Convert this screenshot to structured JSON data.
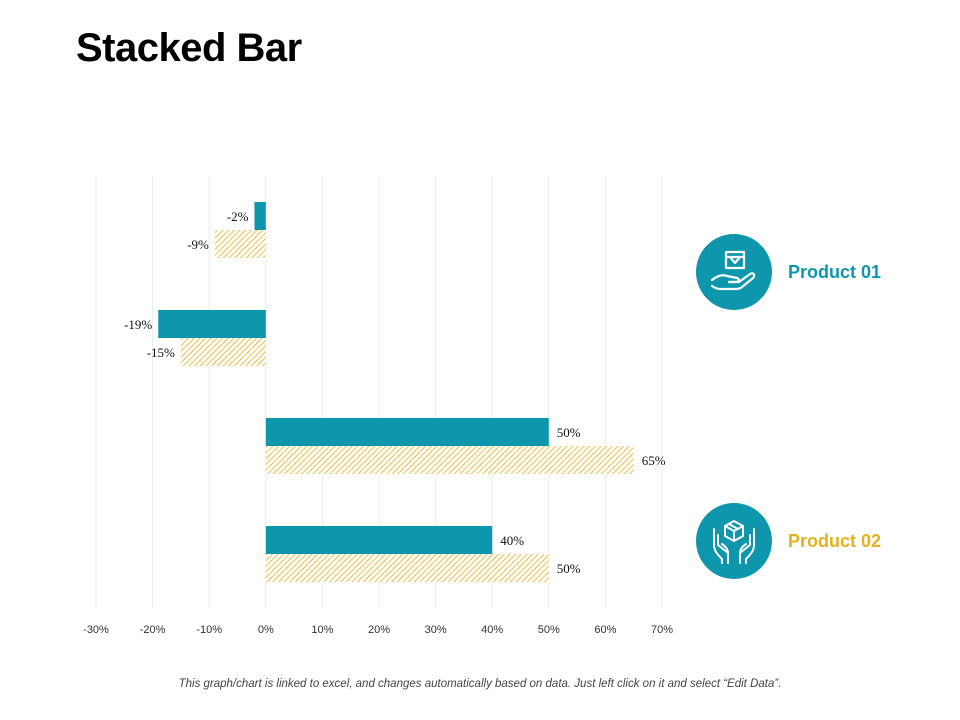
{
  "title": "Stacked Bar",
  "footnote": "This graph/chart is linked to excel, and changes automatically based on data. Just left click on it and select “Edit Data”.",
  "colors": {
    "product1": "#0e97ac",
    "product2": "#e3b21e",
    "legend_circle": "#0e97ac",
    "grid": "#ececec"
  },
  "legend": [
    {
      "label": "Product 01",
      "icon": "hand-box-icon",
      "color": "#0e97ac"
    },
    {
      "label": "Product 02",
      "icon": "hands-cube-icon",
      "color": "#e3b21e"
    }
  ],
  "chart_data": {
    "type": "bar",
    "orientation": "horizontal",
    "series": [
      {
        "values": [
          -2,
          -19,
          50,
          40
        ],
        "labels": [
          "-2%",
          "-19%",
          "50%",
          "40%"
        ],
        "color": "#0e97ac",
        "fill": "solid"
      },
      {
        "values": [
          -9,
          -15,
          65,
          50
        ],
        "labels": [
          "-9%",
          "-15%",
          "65%",
          "50%"
        ],
        "color": "#e3b21e",
        "fill": "hatched"
      }
    ],
    "xlim": [
      -30,
      70
    ],
    "xticks": [
      "-30%",
      "-20%",
      "-10%",
      "0%",
      "10%",
      "20%",
      "30%",
      "40%",
      "50%",
      "60%",
      "70%"
    ],
    "grid": "vertical"
  }
}
